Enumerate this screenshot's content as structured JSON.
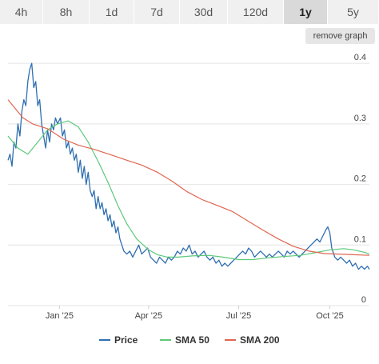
{
  "range_tabs": {
    "active": "1y",
    "items": [
      "4h",
      "8h",
      "1d",
      "7d",
      "30d",
      "120d",
      "1y",
      "5y"
    ]
  },
  "remove_graph_label": "remove graph",
  "chart_data": {
    "type": "line",
    "title": "",
    "xlabel": "",
    "ylabel": "",
    "x_start": "2024-11-10",
    "x_end": "2025-11-10",
    "x_ticks": [
      {
        "label": "Jan '25",
        "date": "2025-01-01"
      },
      {
        "label": "Apr '25",
        "date": "2025-04-01"
      },
      {
        "label": "Jul '25",
        "date": "2025-07-01"
      },
      {
        "label": "Oct '25",
        "date": "2025-10-01"
      }
    ],
    "y_ticks": [
      0,
      0.1,
      0.2,
      0.3,
      0.4
    ],
    "y_tick_labels": [
      "0",
      "0.1",
      "0.2",
      "0.3",
      "0.4"
    ],
    "ylim": [
      0,
      0.42
    ],
    "grid": true,
    "legend_position": "bottom",
    "series": [
      {
        "name": "Price",
        "color": "#2f6fb0",
        "points": [
          [
            "2024-11-10",
            0.24
          ],
          [
            "2024-11-12",
            0.25
          ],
          [
            "2024-11-14",
            0.23
          ],
          [
            "2024-11-16",
            0.27
          ],
          [
            "2024-11-18",
            0.26
          ],
          [
            "2024-11-20",
            0.3
          ],
          [
            "2024-11-22",
            0.28
          ],
          [
            "2024-11-24",
            0.32
          ],
          [
            "2024-11-26",
            0.34
          ],
          [
            "2024-11-28",
            0.33
          ],
          [
            "2024-11-30",
            0.37
          ],
          [
            "2024-12-02",
            0.39
          ],
          [
            "2024-12-04",
            0.4
          ],
          [
            "2024-12-06",
            0.36
          ],
          [
            "2024-12-08",
            0.37
          ],
          [
            "2024-12-10",
            0.33
          ],
          [
            "2024-12-12",
            0.34
          ],
          [
            "2024-12-14",
            0.3
          ],
          [
            "2024-12-16",
            0.28
          ],
          [
            "2024-12-18",
            0.26
          ],
          [
            "2024-12-20",
            0.29
          ],
          [
            "2024-12-22",
            0.27
          ],
          [
            "2024-12-24",
            0.3
          ],
          [
            "2024-12-26",
            0.29
          ],
          [
            "2024-12-28",
            0.31
          ],
          [
            "2024-12-30",
            0.3
          ],
          [
            "2025-01-02",
            0.31
          ],
          [
            "2025-01-04",
            0.28
          ],
          [
            "2025-01-06",
            0.29
          ],
          [
            "2025-01-08",
            0.26
          ],
          [
            "2025-01-10",
            0.27
          ],
          [
            "2025-01-12",
            0.25
          ],
          [
            "2025-01-14",
            0.26
          ],
          [
            "2025-01-16",
            0.24
          ],
          [
            "2025-01-18",
            0.25
          ],
          [
            "2025-01-20",
            0.22
          ],
          [
            "2025-01-22",
            0.24
          ],
          [
            "2025-01-24",
            0.21
          ],
          [
            "2025-01-26",
            0.23
          ],
          [
            "2025-01-28",
            0.2
          ],
          [
            "2025-01-30",
            0.22
          ],
          [
            "2025-02-01",
            0.19
          ],
          [
            "2025-02-03",
            0.18
          ],
          [
            "2025-02-05",
            0.19
          ],
          [
            "2025-02-07",
            0.16
          ],
          [
            "2025-02-09",
            0.18
          ],
          [
            "2025-02-11",
            0.16
          ],
          [
            "2025-02-13",
            0.17
          ],
          [
            "2025-02-15",
            0.15
          ],
          [
            "2025-02-17",
            0.16
          ],
          [
            "2025-02-19",
            0.14
          ],
          [
            "2025-02-21",
            0.15
          ],
          [
            "2025-02-23",
            0.13
          ],
          [
            "2025-02-25",
            0.14
          ],
          [
            "2025-02-27",
            0.12
          ],
          [
            "2025-03-01",
            0.13
          ],
          [
            "2025-03-03",
            0.11
          ],
          [
            "2025-03-05",
            0.1
          ],
          [
            "2025-03-07",
            0.09
          ],
          [
            "2025-03-10",
            0.085
          ],
          [
            "2025-03-13",
            0.09
          ],
          [
            "2025-03-16",
            0.08
          ],
          [
            "2025-03-19",
            0.09
          ],
          [
            "2025-03-22",
            0.1
          ],
          [
            "2025-03-25",
            0.085
          ],
          [
            "2025-03-28",
            0.09
          ],
          [
            "2025-03-31",
            0.095
          ],
          [
            "2025-04-03",
            0.08
          ],
          [
            "2025-04-06",
            0.075
          ],
          [
            "2025-04-09",
            0.07
          ],
          [
            "2025-04-12",
            0.08
          ],
          [
            "2025-04-15",
            0.075
          ],
          [
            "2025-04-18",
            0.07
          ],
          [
            "2025-04-21",
            0.08
          ],
          [
            "2025-04-24",
            0.075
          ],
          [
            "2025-04-27",
            0.08
          ],
          [
            "2025-04-30",
            0.09
          ],
          [
            "2025-05-03",
            0.085
          ],
          [
            "2025-05-06",
            0.095
          ],
          [
            "2025-05-09",
            0.09
          ],
          [
            "2025-05-12",
            0.1
          ],
          [
            "2025-05-15",
            0.085
          ],
          [
            "2025-05-18",
            0.09
          ],
          [
            "2025-05-21",
            0.08
          ],
          [
            "2025-05-24",
            0.085
          ],
          [
            "2025-05-27",
            0.09
          ],
          [
            "2025-05-30",
            0.08
          ],
          [
            "2025-06-02",
            0.075
          ],
          [
            "2025-06-05",
            0.08
          ],
          [
            "2025-06-08",
            0.07
          ],
          [
            "2025-06-11",
            0.075
          ],
          [
            "2025-06-14",
            0.065
          ],
          [
            "2025-06-17",
            0.07
          ],
          [
            "2025-06-20",
            0.065
          ],
          [
            "2025-06-23",
            0.07
          ],
          [
            "2025-06-26",
            0.075
          ],
          [
            "2025-06-29",
            0.08
          ],
          [
            "2025-07-02",
            0.085
          ],
          [
            "2025-07-05",
            0.09
          ],
          [
            "2025-07-08",
            0.085
          ],
          [
            "2025-07-11",
            0.095
          ],
          [
            "2025-07-14",
            0.09
          ],
          [
            "2025-07-17",
            0.08
          ],
          [
            "2025-07-20",
            0.085
          ],
          [
            "2025-07-23",
            0.09
          ],
          [
            "2025-07-26",
            0.085
          ],
          [
            "2025-07-29",
            0.08
          ],
          [
            "2025-08-01",
            0.085
          ],
          [
            "2025-08-04",
            0.08
          ],
          [
            "2025-08-07",
            0.085
          ],
          [
            "2025-08-10",
            0.09
          ],
          [
            "2025-08-13",
            0.085
          ],
          [
            "2025-08-16",
            0.08
          ],
          [
            "2025-08-19",
            0.09
          ],
          [
            "2025-08-22",
            0.085
          ],
          [
            "2025-08-25",
            0.09
          ],
          [
            "2025-08-28",
            0.085
          ],
          [
            "2025-08-31",
            0.08
          ],
          [
            "2025-09-03",
            0.085
          ],
          [
            "2025-09-06",
            0.09
          ],
          [
            "2025-09-09",
            0.095
          ],
          [
            "2025-09-12",
            0.1
          ],
          [
            "2025-09-15",
            0.105
          ],
          [
            "2025-09-18",
            0.11
          ],
          [
            "2025-09-21",
            0.105
          ],
          [
            "2025-09-24",
            0.115
          ],
          [
            "2025-09-27",
            0.125
          ],
          [
            "2025-09-29",
            0.13
          ],
          [
            "2025-10-01",
            0.12
          ],
          [
            "2025-10-03",
            0.095
          ],
          [
            "2025-10-06",
            0.08
          ],
          [
            "2025-10-09",
            0.075
          ],
          [
            "2025-10-12",
            0.08
          ],
          [
            "2025-10-15",
            0.075
          ],
          [
            "2025-10-18",
            0.07
          ],
          [
            "2025-10-21",
            0.075
          ],
          [
            "2025-10-24",
            0.065
          ],
          [
            "2025-10-27",
            0.07
          ],
          [
            "2025-10-30",
            0.06
          ],
          [
            "2025-11-02",
            0.065
          ],
          [
            "2025-11-05",
            0.06
          ],
          [
            "2025-11-08",
            0.065
          ],
          [
            "2025-11-10",
            0.06
          ]
        ]
      },
      {
        "name": "SMA 50",
        "color": "#5cc879",
        "points": [
          [
            "2024-11-10",
            0.28
          ],
          [
            "2024-11-20",
            0.26
          ],
          [
            "2024-11-30",
            0.25
          ],
          [
            "2024-12-10",
            0.27
          ],
          [
            "2024-12-20",
            0.29
          ],
          [
            "2024-12-30",
            0.3
          ],
          [
            "2025-01-10",
            0.305
          ],
          [
            "2025-01-20",
            0.295
          ],
          [
            "2025-01-30",
            0.27
          ],
          [
            "2025-02-10",
            0.235
          ],
          [
            "2025-02-20",
            0.2
          ],
          [
            "2025-03-01",
            0.165
          ],
          [
            "2025-03-10",
            0.135
          ],
          [
            "2025-03-20",
            0.11
          ],
          [
            "2025-04-01",
            0.092
          ],
          [
            "2025-04-10",
            0.084
          ],
          [
            "2025-04-20",
            0.08
          ],
          [
            "2025-05-01",
            0.08
          ],
          [
            "2025-05-15",
            0.082
          ],
          [
            "2025-06-01",
            0.083
          ],
          [
            "2025-06-15",
            0.08
          ],
          [
            "2025-07-01",
            0.076
          ],
          [
            "2025-07-15",
            0.076
          ],
          [
            "2025-08-01",
            0.079
          ],
          [
            "2025-08-15",
            0.081
          ],
          [
            "2025-09-01",
            0.083
          ],
          [
            "2025-09-15",
            0.087
          ],
          [
            "2025-10-01",
            0.092
          ],
          [
            "2025-10-15",
            0.094
          ],
          [
            "2025-10-25",
            0.092
          ],
          [
            "2025-11-05",
            0.088
          ],
          [
            "2025-11-10",
            0.085
          ]
        ]
      },
      {
        "name": "SMA 200",
        "color": "#e06650",
        "points": [
          [
            "2024-11-10",
            0.34
          ],
          [
            "2024-11-25",
            0.31
          ],
          [
            "2024-12-05",
            0.3
          ],
          [
            "2024-12-20",
            0.292
          ],
          [
            "2025-01-05",
            0.275
          ],
          [
            "2025-01-20",
            0.265
          ],
          [
            "2025-02-05",
            0.258
          ],
          [
            "2025-02-20",
            0.25
          ],
          [
            "2025-03-10",
            0.24
          ],
          [
            "2025-03-25",
            0.232
          ],
          [
            "2025-04-10",
            0.22
          ],
          [
            "2025-04-25",
            0.205
          ],
          [
            "2025-05-10",
            0.188
          ],
          [
            "2025-05-25",
            0.175
          ],
          [
            "2025-06-10",
            0.165
          ],
          [
            "2025-06-25",
            0.155
          ],
          [
            "2025-07-10",
            0.14
          ],
          [
            "2025-07-25",
            0.125
          ],
          [
            "2025-08-10",
            0.11
          ],
          [
            "2025-08-25",
            0.098
          ],
          [
            "2025-09-10",
            0.09
          ],
          [
            "2025-09-25",
            0.086
          ],
          [
            "2025-10-10",
            0.085
          ],
          [
            "2025-10-25",
            0.084
          ],
          [
            "2025-11-10",
            0.083
          ]
        ]
      }
    ]
  }
}
